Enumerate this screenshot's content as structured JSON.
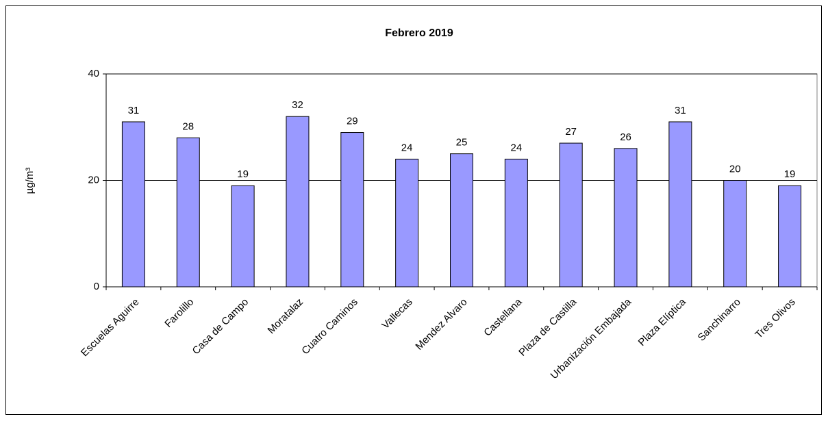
{
  "chart_data": {
    "type": "bar",
    "title": "Febrero 2019",
    "y_label": "µg/m³",
    "categories": [
      "Escuelas Aguirre",
      "Farolillo",
      "Casa de Campo",
      "Moratalaz",
      "Cuatro Caminos",
      "Vallecas",
      "Mendez Alvaro",
      "Castellana",
      "Plaza de Castilla",
      "Urbanización Embajada",
      "Plaza Elíptica",
      "Sanchinarro",
      "Tres Olivos"
    ],
    "values": [
      31,
      28,
      19,
      32,
      29,
      24,
      25,
      24,
      27,
      26,
      31,
      20,
      19
    ],
    "color": "#9999ff",
    "ylim": [
      0,
      40
    ],
    "yticks": [
      0,
      20,
      40
    ],
    "grid": true
  }
}
